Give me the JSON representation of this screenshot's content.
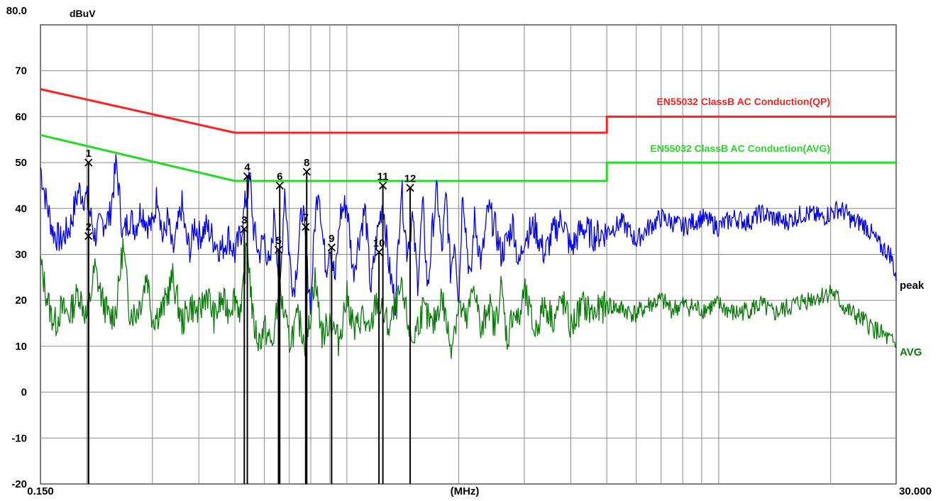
{
  "chart_data": {
    "type": "line",
    "title": "",
    "ylabel": "dBuV",
    "xlabel": "(MHz)",
    "x_scale": "log",
    "xlim": [
      0.15,
      30.0
    ],
    "ylim": [
      -20,
      80
    ],
    "grid": true,
    "y_ticks": [
      "80.0",
      "70",
      "60",
      "50",
      "40",
      "30",
      "20",
      "10",
      "0",
      "-10",
      "-20"
    ],
    "x_tick_labels": {
      "start": "0.150",
      "end": "30.000"
    },
    "x_grid_mhz": [
      0.2,
      0.3,
      0.4,
      0.5,
      0.6,
      0.7,
      0.8,
      0.9,
      1,
      2,
      3,
      4,
      5,
      6,
      7,
      8,
      9,
      10,
      20
    ],
    "limits": [
      {
        "name": "EN55032 ClassB AC Conduction(QP)",
        "color": "#ff2020",
        "x": [
          0.15,
          0.5,
          0.5,
          5,
          5,
          30
        ],
        "y": [
          66,
          56.5,
          56.5,
          56.5,
          60,
          60
        ]
      },
      {
        "name": "EN55032 ClassB AC Conduction(AVG)",
        "color": "#22dd22",
        "x": [
          0.15,
          0.5,
          0.5,
          5,
          5,
          30
        ],
        "y": [
          56,
          46,
          46,
          46,
          50,
          50
        ]
      }
    ],
    "series": [
      {
        "name": "peak",
        "color": "#0000ee",
        "x": [
          0.15,
          0.155,
          0.162,
          0.17,
          0.18,
          0.19,
          0.2,
          0.21,
          0.22,
          0.23,
          0.24,
          0.25,
          0.26,
          0.27,
          0.28,
          0.29,
          0.3,
          0.31,
          0.32,
          0.33,
          0.34,
          0.35,
          0.36,
          0.37,
          0.38,
          0.39,
          0.4,
          0.42,
          0.44,
          0.46,
          0.48,
          0.5,
          0.52,
          0.54,
          0.55,
          0.56,
          0.58,
          0.6,
          0.62,
          0.64,
          0.66,
          0.68,
          0.7,
          0.72,
          0.74,
          0.76,
          0.78,
          0.8,
          0.82,
          0.84,
          0.86,
          0.88,
          0.9,
          0.93,
          0.96,
          1.0,
          1.04,
          1.08,
          1.12,
          1.16,
          1.2,
          1.25,
          1.3,
          1.35,
          1.4,
          1.45,
          1.5,
          1.55,
          1.6,
          1.65,
          1.7,
          1.75,
          1.8,
          1.85,
          1.9,
          1.95,
          2.0,
          2.05,
          2.1,
          2.15,
          2.2,
          2.3,
          2.4,
          2.5,
          2.6,
          2.7,
          2.8,
          2.9,
          3.0,
          3.2,
          3.4,
          3.6,
          3.8,
          4.0,
          4.3,
          4.6,
          5.0,
          5.5,
          6.0,
          6.5,
          7.0,
          7.5,
          8.0,
          9.0,
          10.0,
          11.0,
          12.0,
          13.0,
          14.0,
          15.0,
          17.0,
          19.0,
          21.0,
          22.0,
          23.0,
          24.0,
          25.0,
          26.0,
          27.0,
          28.0,
          29.0,
          30.0
        ],
        "y": [
          49,
          42,
          35,
          33,
          36,
          44,
          42,
          34,
          37,
          38,
          50,
          34,
          38,
          36,
          40,
          37,
          36,
          44,
          33,
          38,
          30,
          35,
          41,
          33,
          31,
          37,
          34,
          36,
          33,
          31,
          34,
          30,
          35,
          44,
          46,
          36,
          30,
          34,
          26,
          40,
          20,
          45,
          30,
          22,
          31,
          41,
          28,
          19,
          37,
          46,
          34,
          27,
          33,
          24,
          39,
          41,
          26,
          34,
          40,
          22,
          33,
          42,
          27,
          19,
          45,
          31,
          38,
          24,
          41,
          22,
          36,
          44,
          30,
          43,
          26,
          34,
          20,
          45,
          33,
          23,
          38,
          28,
          40,
          36,
          30,
          33,
          37,
          27,
          34,
          36,
          30,
          35,
          38,
          31,
          36,
          34,
          35,
          37,
          33,
          36,
          38,
          37,
          36,
          38,
          36,
          38,
          37,
          39,
          38,
          37,
          39,
          38,
          40,
          39,
          37,
          37,
          36,
          34,
          32,
          31,
          30,
          25
        ]
      },
      {
        "name": "AVG",
        "color": "#0b7a0b",
        "x": [
          0.15,
          0.155,
          0.16,
          0.165,
          0.17,
          0.18,
          0.19,
          0.2,
          0.21,
          0.22,
          0.23,
          0.24,
          0.25,
          0.26,
          0.27,
          0.28,
          0.29,
          0.3,
          0.32,
          0.34,
          0.36,
          0.38,
          0.4,
          0.42,
          0.44,
          0.46,
          0.48,
          0.5,
          0.52,
          0.54,
          0.56,
          0.58,
          0.6,
          0.63,
          0.66,
          0.7,
          0.74,
          0.78,
          0.82,
          0.86,
          0.9,
          0.95,
          1.0,
          1.05,
          1.1,
          1.15,
          1.2,
          1.3,
          1.4,
          1.5,
          1.6,
          1.7,
          1.8,
          1.9,
          2.0,
          2.1,
          2.2,
          2.3,
          2.4,
          2.5,
          2.6,
          2.7,
          2.8,
          2.9,
          3.0,
          3.2,
          3.4,
          3.6,
          3.8,
          4.0,
          4.3,
          4.6,
          5.0,
          5.5,
          6.0,
          6.5,
          7.0,
          7.5,
          8.0,
          9.0,
          10.0,
          11.0,
          12.0,
          13.0,
          14.0,
          15.0,
          17.0,
          19.0,
          20.0,
          21.0,
          22.0,
          23.0,
          24.0,
          25.0,
          26.0,
          27.0,
          28.0,
          29.0,
          30.0
        ],
        "y": [
          28,
          22,
          17,
          15,
          18,
          17,
          22,
          16,
          27,
          20,
          16,
          18,
          32,
          18,
          17,
          20,
          26,
          16,
          18,
          25,
          15,
          19,
          17,
          22,
          16,
          20,
          18,
          21,
          17,
          33,
          15,
          11,
          14,
          10,
          22,
          11,
          16,
          10,
          25,
          12,
          16,
          11,
          21,
          13,
          17,
          12,
          20,
          14,
          22,
          11,
          18,
          14,
          21,
          10,
          19,
          15,
          24,
          12,
          20,
          14,
          23,
          11,
          18,
          15,
          22,
          13,
          19,
          16,
          20,
          14,
          19,
          17,
          19,
          18,
          17,
          19,
          20,
          18,
          19,
          18,
          19,
          17,
          18,
          19,
          17,
          18,
          20,
          21,
          22,
          20,
          18,
          17,
          16,
          15,
          14,
          13,
          12,
          11,
          10
        ]
      }
    ],
    "markers": [
      {
        "label": "1",
        "x_mhz": 0.202,
        "y": 50
      },
      {
        "label": "2",
        "x_mhz": 0.202,
        "y": 34
      },
      {
        "label": "3",
        "x_mhz": 0.53,
        "y": 35.5
      },
      {
        "label": "4",
        "x_mhz": 0.54,
        "y": 47
      },
      {
        "label": "5",
        "x_mhz": 0.655,
        "y": 31
      },
      {
        "label": "6",
        "x_mhz": 0.66,
        "y": 45
      },
      {
        "label": "7",
        "x_mhz": 0.775,
        "y": 36
      },
      {
        "label": "8",
        "x_mhz": 0.78,
        "y": 48
      },
      {
        "label": "9",
        "x_mhz": 0.91,
        "y": 31.5
      },
      {
        "label": "10",
        "x_mhz": 1.22,
        "y": 30.5
      },
      {
        "label": "11",
        "x_mhz": 1.25,
        "y": 45
      },
      {
        "label": "12",
        "x_mhz": 1.48,
        "y": 44.5
      }
    ]
  }
}
